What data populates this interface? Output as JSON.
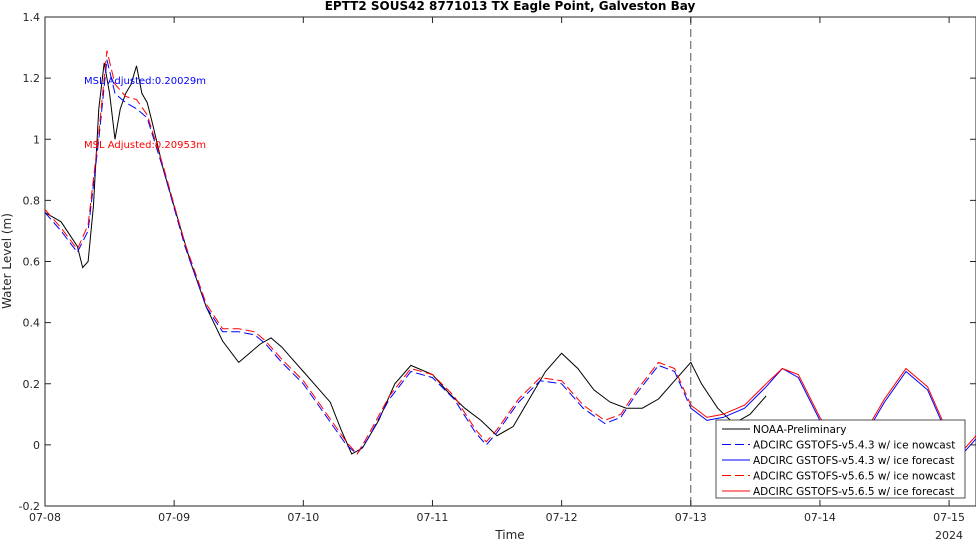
{
  "chart_data": {
    "type": "line",
    "title": "EPTT2 SOUS42 8771013 TX Eagle Point, Galveston Bay",
    "xlabel": "Time",
    "ylabel": "Water Level (m)",
    "year_label": "2024",
    "xlim": [
      "2024-07-08 00:00",
      "2024-07-15 05:00"
    ],
    "ylim": [
      -0.2,
      1.4
    ],
    "xticks": [
      "07-08",
      "07-09",
      "07-10",
      "07-11",
      "07-12",
      "07-13",
      "07-14",
      "07-15"
    ],
    "yticks": [
      "-0.2",
      "0",
      "0.2",
      "0.4",
      "0.6",
      "0.8",
      "1",
      "1.2",
      "1.4"
    ],
    "grid": false,
    "legend_position": "bottom-right",
    "forecast_start": "2024-07-13 00:00",
    "annotations": [
      {
        "text": "MSL Adjusted:0.20029m",
        "color": "#0000ff"
      },
      {
        "text": "MSL Adjusted:0.20953m",
        "color": "#ff0000"
      }
    ],
    "series": [
      {
        "name": "NOAA-Preliminary",
        "color": "#000000",
        "dash": "solid",
        "x": [
          "07-08 00:00",
          "07-08 03:00",
          "07-08 06:00",
          "07-08 07:00",
          "07-08 08:00",
          "07-08 09:00",
          "07-08 10:00",
          "07-08 11:00",
          "07-08 12:00",
          "07-08 13:00",
          "07-08 14:00",
          "07-08 15:00",
          "07-08 16:00",
          "07-08 17:00",
          "07-08 18:00",
          "07-08 19:00",
          "07-08 20:00",
          "07-08 22:00",
          "07-09 00:00",
          "07-09 03:00",
          "07-09 06:00",
          "07-09 09:00",
          "07-09 12:00",
          "07-09 14:00",
          "07-09 16:00",
          "07-09 18:00",
          "07-09 20:00",
          "07-09 22:00",
          "07-10 00:00",
          "07-10 03:00",
          "07-10 05:00",
          "07-10 07:00",
          "07-10 09:00",
          "07-10 11:00",
          "07-10 14:00",
          "07-10 17:00",
          "07-10 20:00",
          "07-11 00:00",
          "07-11 03:00",
          "07-11 06:00",
          "07-11 09:00",
          "07-11 12:00",
          "07-11 15:00",
          "07-11 18:00",
          "07-11 21:00",
          "07-12 00:00",
          "07-12 03:00",
          "07-12 06:00",
          "07-12 09:00",
          "07-12 12:00",
          "07-12 15:00",
          "07-12 18:00",
          "07-12 21:00",
          "07-13 00:00",
          "07-13 02:00",
          "07-13 05:00",
          "07-13 08:00",
          "07-13 11:00",
          "07-13 14:00"
        ],
        "y": [
          0.76,
          0.73,
          0.65,
          0.58,
          0.6,
          0.78,
          1.1,
          1.25,
          1.15,
          1.0,
          1.1,
          1.15,
          1.18,
          1.24,
          1.15,
          1.12,
          1.05,
          0.9,
          0.78,
          0.6,
          0.45,
          0.34,
          0.27,
          0.3,
          0.33,
          0.35,
          0.32,
          0.28,
          0.24,
          0.18,
          0.14,
          0.05,
          -0.03,
          -0.01,
          0.08,
          0.2,
          0.26,
          0.23,
          0.17,
          0.12,
          0.08,
          0.03,
          0.06,
          0.15,
          0.24,
          0.3,
          0.25,
          0.18,
          0.14,
          0.12,
          0.12,
          0.15,
          0.21,
          0.27,
          0.2,
          0.12,
          0.07,
          0.1,
          0.16
        ]
      },
      {
        "name": "ADCIRC GSTOFS-v5.4.3 w/ ice nowcast",
        "color": "#0000ff",
        "dash": "dashed",
        "x": [
          "07-08 00:00",
          "07-08 03:00",
          "07-08 06:00",
          "07-08 08:00",
          "07-08 10:00",
          "07-08 11:30",
          "07-08 13:00",
          "07-08 15:00",
          "07-08 17:00",
          "07-08 19:00",
          "07-08 22:00",
          "07-09 02:00",
          "07-09 06:00",
          "07-09 09:00",
          "07-09 12:00",
          "07-09 15:00",
          "07-09 17:00",
          "07-09 20:00",
          "07-10 00:00",
          "07-10 04:00",
          "07-10 08:00",
          "07-10 10:00",
          "07-10 12:00",
          "07-10 16:00",
          "07-10 20:00",
          "07-11 00:00",
          "07-11 04:00",
          "07-11 08:00",
          "07-11 10:00",
          "07-11 12:00",
          "07-11 16:00",
          "07-11 20:00",
          "07-12 00:00",
          "07-12 04:00",
          "07-12 08:00",
          "07-12 11:00",
          "07-12 14:00",
          "07-12 18:00",
          "07-12 21:00",
          "07-13 00:00"
        ],
        "y": [
          0.76,
          0.7,
          0.63,
          0.7,
          1.0,
          1.26,
          1.15,
          1.12,
          1.1,
          1.07,
          0.9,
          0.65,
          0.45,
          0.37,
          0.37,
          0.36,
          0.33,
          0.27,
          0.2,
          0.1,
          0.0,
          -0.03,
          0.02,
          0.15,
          0.24,
          0.22,
          0.15,
          0.04,
          0.0,
          0.04,
          0.14,
          0.21,
          0.2,
          0.12,
          0.07,
          0.09,
          0.17,
          0.26,
          0.24,
          0.12
        ]
      },
      {
        "name": "ADCIRC GSTOFS-v5.4.3 w/ ice forecast",
        "color": "#0000ff",
        "dash": "solid",
        "x": [
          "07-13 00:00",
          "07-13 03:00",
          "07-13 06:00",
          "07-13 10:00",
          "07-13 14:00",
          "07-13 17:00",
          "07-13 20:00",
          "07-14 00:00",
          "07-14 04:00",
          "07-14 08:00",
          "07-14 12:00",
          "07-14 16:00",
          "07-14 20:00",
          "07-15 00:00",
          "07-15 03:00",
          "07-15 05:00"
        ],
        "y": [
          0.12,
          0.08,
          0.09,
          0.12,
          0.19,
          0.25,
          0.22,
          0.08,
          -0.02,
          0.02,
          0.14,
          0.24,
          0.18,
          0.02,
          -0.02,
          0.02
        ]
      },
      {
        "name": "ADCIRC GSTOFS-v5.6.5 w/ ice nowcast",
        "color": "#ff0000",
        "dash": "dashed",
        "x": [
          "07-08 00:00",
          "07-08 03:00",
          "07-08 06:00",
          "07-08 08:00",
          "07-08 10:00",
          "07-08 11:30",
          "07-08 13:00",
          "07-08 15:00",
          "07-08 17:00",
          "07-08 19:00",
          "07-08 22:00",
          "07-09 02:00",
          "07-09 06:00",
          "07-09 09:00",
          "07-09 12:00",
          "07-09 15:00",
          "07-09 17:00",
          "07-09 20:00",
          "07-10 00:00",
          "07-10 04:00",
          "07-10 08:00",
          "07-10 10:00",
          "07-10 12:00",
          "07-10 16:00",
          "07-10 20:00",
          "07-11 00:00",
          "07-11 04:00",
          "07-11 08:00",
          "07-11 10:00",
          "07-11 12:00",
          "07-11 16:00",
          "07-11 20:00",
          "07-12 00:00",
          "07-12 04:00",
          "07-12 08:00",
          "07-12 11:00",
          "07-12 14:00",
          "07-12 18:00",
          "07-12 21:00",
          "07-13 00:00"
        ],
        "y": [
          0.77,
          0.71,
          0.64,
          0.72,
          1.02,
          1.29,
          1.18,
          1.14,
          1.13,
          1.08,
          0.91,
          0.66,
          0.46,
          0.38,
          0.38,
          0.37,
          0.34,
          0.28,
          0.21,
          0.11,
          0.01,
          -0.03,
          0.03,
          0.16,
          0.25,
          0.23,
          0.16,
          0.05,
          0.01,
          0.05,
          0.15,
          0.22,
          0.21,
          0.13,
          0.08,
          0.1,
          0.18,
          0.27,
          0.25,
          0.13
        ]
      },
      {
        "name": "ADCIRC GSTOFS-v5.6.5 w/ ice forecast",
        "color": "#ff0000",
        "dash": "solid",
        "x": [
          "07-13 00:00",
          "07-13 03:00",
          "07-13 06:00",
          "07-13 10:00",
          "07-13 14:00",
          "07-13 17:00",
          "07-13 20:00",
          "07-14 00:00",
          "07-14 04:00",
          "07-14 08:00",
          "07-14 12:00",
          "07-14 16:00",
          "07-14 20:00",
          "07-15 00:00",
          "07-15 03:00",
          "07-15 05:00"
        ],
        "y": [
          0.13,
          0.09,
          0.1,
          0.13,
          0.2,
          0.25,
          0.23,
          0.09,
          -0.01,
          0.03,
          0.15,
          0.25,
          0.19,
          0.03,
          -0.01,
          0.03
        ]
      }
    ]
  }
}
